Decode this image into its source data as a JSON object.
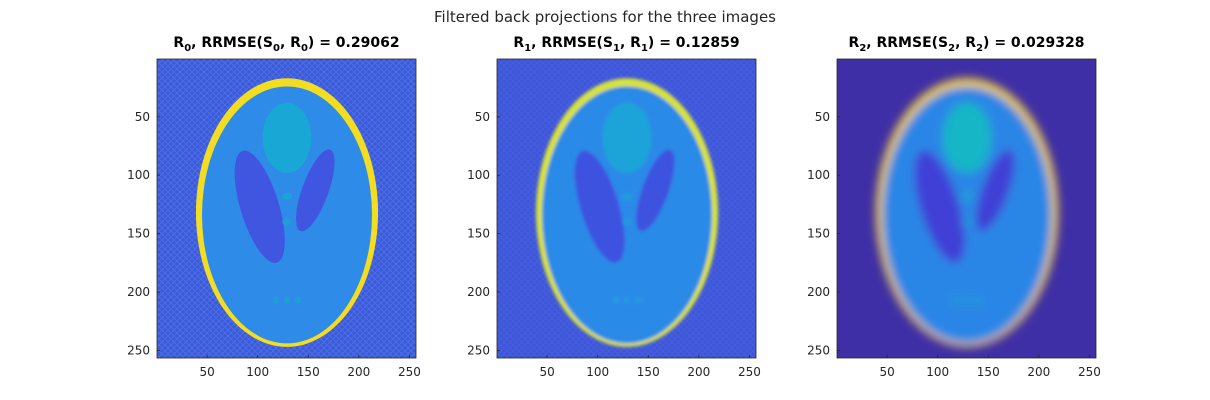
{
  "figure": {
    "title": "Filtered back projections for the three images"
  },
  "chart_data": [
    {
      "type": "heatmap",
      "title_parts": {
        "r": "R",
        "r_sub": "0",
        "mid1": ", RRMSE(",
        "s": "S",
        "s_sub": "0",
        "mid2": ", ",
        "r2": "R",
        "r2_sub": "0",
        "end": ") = 0.29062"
      },
      "rrmse": 0.29062,
      "xlim": [
        1,
        256
      ],
      "ylim": [
        1,
        256
      ],
      "xticks": [
        50,
        100,
        150,
        200,
        250
      ],
      "yticks": [
        50,
        100,
        150,
        200,
        250
      ],
      "colors": {
        "background": "#3a5ad8",
        "body": "#2f8be8",
        "rim": "#f2dd22",
        "dark": "#4156e0",
        "bright": "#19a7d6"
      }
    },
    {
      "type": "heatmap",
      "title_parts": {
        "r": "R",
        "r_sub": "1",
        "mid1": ", RRMSE(",
        "s": "S",
        "s_sub": "1",
        "mid2": ", ",
        "r2": "R",
        "r2_sub": "1",
        "end": ") = 0.12859"
      },
      "rrmse": 0.12859,
      "xlim": [
        1,
        256
      ],
      "ylim": [
        1,
        256
      ],
      "xticks": [
        50,
        100,
        150,
        200,
        250
      ],
      "yticks": [
        50,
        100,
        150,
        200,
        250
      ],
      "colors": {
        "background": "#3d55d8",
        "body": "#2c8ae8",
        "rim": "#d8e23a",
        "dark": "#3e52df",
        "bright": "#1ea4d8"
      }
    },
    {
      "type": "heatmap",
      "title_parts": {
        "r": "R",
        "r_sub": "2",
        "mid1": ", RRMSE(",
        "s": "S",
        "s_sub": "2",
        "mid2": ", ",
        "r2": "R",
        "r2_sub": "2",
        "end": ") = 0.029328"
      },
      "rrmse": 0.029328,
      "xlim": [
        1,
        256
      ],
      "ylim": [
        1,
        256
      ],
      "xticks": [
        50,
        100,
        150,
        200,
        250
      ],
      "yticks": [
        50,
        100,
        150,
        200,
        250
      ],
      "colors": {
        "background": "#3f2fa6",
        "body": "#2b86e6",
        "rim": "#f4d224",
        "dark": "#4040d6",
        "bright": "#12b6c6"
      }
    }
  ]
}
